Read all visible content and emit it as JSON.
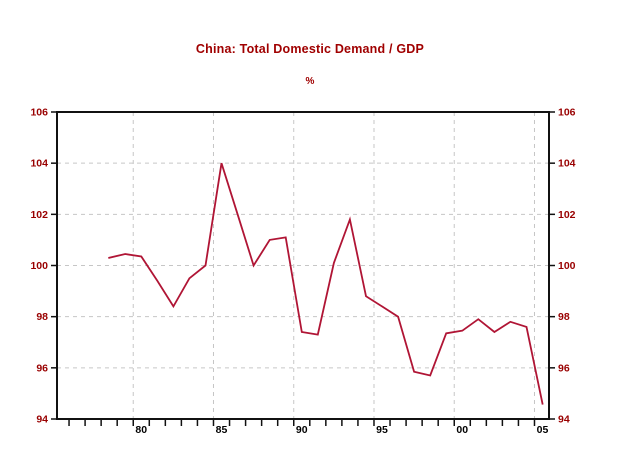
{
  "header": {
    "title": "China: Total Domestic Demand / GDP",
    "subtitle": "%"
  },
  "chart_data": {
    "type": "line",
    "title": "China: Total Domestic Demand / GDP",
    "subtitle": "%",
    "series_name": "Total Domestic Demand / GDP",
    "x": [
      1978,
      1979,
      1980,
      1981,
      1982,
      1983,
      1984,
      1985,
      1986,
      1987,
      1988,
      1989,
      1990,
      1991,
      1992,
      1993,
      1994,
      1995,
      1996,
      1997,
      1998,
      1999,
      2000,
      2001,
      2002,
      2003,
      2004,
      2005
    ],
    "values": [
      100.3,
      100.45,
      100.35,
      99.4,
      98.4,
      99.5,
      100.0,
      104.0,
      102.0,
      100.0,
      101.0,
      101.1,
      97.4,
      97.3,
      100.1,
      101.8,
      98.8,
      98.4,
      98.0,
      95.85,
      95.7,
      97.35,
      97.45,
      97.9,
      97.4,
      97.8,
      97.6,
      94.6
    ],
    "ylim": [
      94,
      106
    ],
    "y_ticks": [
      94,
      96,
      98,
      100,
      102,
      104,
      106
    ],
    "y_grid_values": [
      96,
      98,
      100,
      102,
      104
    ],
    "x_tick_labels": [
      "80",
      "85",
      "90",
      "95",
      "00",
      "05"
    ],
    "x_label_years": [
      1980,
      1985,
      1990,
      1995,
      2000,
      2005
    ],
    "x_minor_tick_start": 1976,
    "x_minor_tick_end": 2005,
    "xlabel": "",
    "ylabel": "%",
    "grid": "dashed, both axes at labeled ticks",
    "legend": "none",
    "colors": {
      "line": "#b01535",
      "title": "#a00000",
      "y_axis_label": "#990000",
      "x_axis_label": "#000000",
      "frame": "#111111",
      "gridline": "#c6c6c6",
      "background": "#ffffff"
    }
  }
}
